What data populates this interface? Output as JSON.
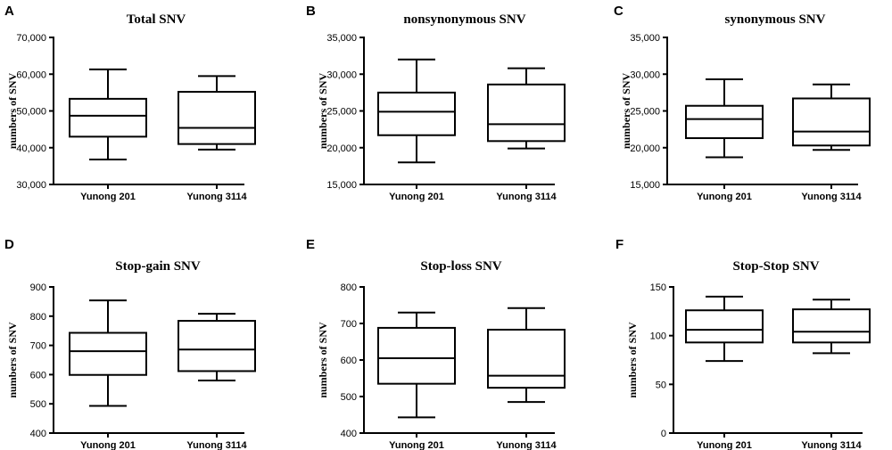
{
  "chart_data": [
    {
      "panel": "A",
      "type": "box",
      "title": "Total SNV",
      "ylabel": "numbers of SNV",
      "ylim": [
        30000,
        70000
      ],
      "yticks": [
        30000,
        40000,
        50000,
        60000,
        70000
      ],
      "yticklabels": [
        "30,000",
        "40,000",
        "50,000",
        "60,000",
        "70,000"
      ],
      "categories": [
        "Yunong 201",
        "Yunong 3114"
      ],
      "series": [
        {
          "name": "Yunong 201",
          "min": 36800,
          "q1": 43000,
          "median": 48700,
          "q3": 53300,
          "max": 61300
        },
        {
          "name": "Yunong 3114",
          "min": 39500,
          "q1": 41000,
          "median": 45400,
          "q3": 55200,
          "max": 59500
        }
      ]
    },
    {
      "panel": "B",
      "type": "box",
      "title": "nonsynonymous SNV",
      "ylabel": "numbers of SNV",
      "ylim": [
        15000,
        35000
      ],
      "yticks": [
        15000,
        20000,
        25000,
        30000,
        35000
      ],
      "yticklabels": [
        "15,000",
        "20,000",
        "25,000",
        "30,000",
        "35,000"
      ],
      "categories": [
        "Yunong 201",
        "Yunong 3114"
      ],
      "series": [
        {
          "name": "Yunong 201",
          "min": 18000,
          "q1": 21700,
          "median": 24900,
          "q3": 27500,
          "max": 32000
        },
        {
          "name": "Yunong 3114",
          "min": 19900,
          "q1": 20900,
          "median": 23200,
          "q3": 28600,
          "max": 30800
        }
      ]
    },
    {
      "panel": "C",
      "type": "box",
      "title": "synonymous SNV",
      "ylabel": "numbers of SNV",
      "ylim": [
        15000,
        35000
      ],
      "yticks": [
        15000,
        20000,
        25000,
        30000,
        35000
      ],
      "yticklabels": [
        "15,000",
        "20,000",
        "25,000",
        "30,000",
        "35,000"
      ],
      "categories": [
        "Yunong 201",
        "Yunong 3114"
      ],
      "series": [
        {
          "name": "Yunong 201",
          "min": 18700,
          "q1": 21300,
          "median": 23900,
          "q3": 25700,
          "max": 29300
        },
        {
          "name": "Yunong 3114",
          "min": 19700,
          "q1": 20300,
          "median": 22200,
          "q3": 26700,
          "max": 28600
        }
      ]
    },
    {
      "panel": "D",
      "type": "box",
      "title": "Stop-gain SNV",
      "ylabel": "numbers of SNV",
      "ylim": [
        400,
        900
      ],
      "yticks": [
        400,
        500,
        600,
        700,
        800,
        900
      ],
      "yticklabels": [
        "400",
        "500",
        "600",
        "700",
        "800",
        "900"
      ],
      "categories": [
        "Yunong 201",
        "Yunong 3114"
      ],
      "series": [
        {
          "name": "Yunong 201",
          "min": 493,
          "q1": 599,
          "median": 680,
          "q3": 743,
          "max": 854
        },
        {
          "name": "Yunong 3114",
          "min": 580,
          "q1": 612,
          "median": 686,
          "q3": 784,
          "max": 808
        }
      ]
    },
    {
      "panel": "E",
      "type": "box",
      "title": "Stop-loss SNV",
      "ylabel": "numbers of SNV",
      "ylim": [
        400,
        800
      ],
      "yticks": [
        400,
        500,
        600,
        700,
        800
      ],
      "yticklabels": [
        "400",
        "500",
        "600",
        "700",
        "800"
      ],
      "categories": [
        "Yunong 201",
        "Yunong 3114"
      ],
      "series": [
        {
          "name": "Yunong 201",
          "min": 443,
          "q1": 535,
          "median": 605,
          "q3": 688,
          "max": 730
        },
        {
          "name": "Yunong 3114",
          "min": 485,
          "q1": 524,
          "median": 557,
          "q3": 683,
          "max": 742
        }
      ]
    },
    {
      "panel": "F",
      "type": "box",
      "title": "Stop-Stop SNV",
      "ylabel": "numbers of SNV",
      "ylim": [
        0,
        150
      ],
      "yticks": [
        0,
        50,
        100,
        150
      ],
      "yticklabels": [
        "0",
        "50",
        "100",
        "150"
      ],
      "categories": [
        "Yunong 201",
        "Yunong 3114"
      ],
      "series": [
        {
          "name": "Yunong 201",
          "min": 74,
          "q1": 93,
          "median": 106,
          "q3": 126,
          "max": 140
        },
        {
          "name": "Yunong 3114",
          "min": 82,
          "q1": 93,
          "median": 104,
          "q3": 127,
          "max": 137
        }
      ]
    }
  ]
}
